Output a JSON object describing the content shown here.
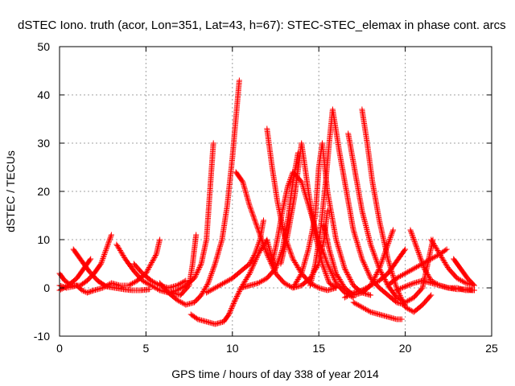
{
  "chart_data": {
    "type": "scatter",
    "title": "dSTEC Iono. truth (acor, Lon=351, Lat=43, h=67): STEC-STEC_elemax in phase cont. arcs",
    "xlabel": "GPS time / hours of day 338 of year 2014",
    "ylabel": "dSTEC  / TECUs",
    "xlim": [
      0,
      25
    ],
    "ylim": [
      -10,
      50
    ],
    "xticks": [
      0,
      5,
      10,
      15,
      20,
      25
    ],
    "yticks": [
      -10,
      0,
      10,
      20,
      30,
      40,
      50
    ],
    "grid": true,
    "marker": "+",
    "color": "#ff0000",
    "series": [
      {
        "points": [
          [
            0.0,
            3
          ],
          [
            0.3,
            1.5
          ],
          [
            0.7,
            0.5
          ],
          [
            1.2,
            0.5
          ],
          [
            1.6,
            1.5
          ],
          [
            2.0,
            3
          ],
          [
            2.4,
            5
          ],
          [
            2.7,
            8
          ],
          [
            3.0,
            11
          ]
        ]
      },
      {
        "points": [
          [
            0.0,
            -0.5
          ],
          [
            0.5,
            0.5
          ],
          [
            1.0,
            2
          ],
          [
            1.4,
            4
          ],
          [
            1.8,
            6
          ]
        ]
      },
      {
        "points": [
          [
            0.0,
            0.5
          ],
          [
            0.4,
            0
          ],
          [
            0.8,
            0.3
          ],
          [
            1.0,
            0.5
          ],
          [
            1.3,
            -0.5
          ],
          [
            1.6,
            -1
          ],
          [
            2.0,
            -0.5
          ],
          [
            2.5,
            0
          ],
          [
            3.0,
            1
          ],
          [
            3.5,
            0.5
          ],
          [
            4.0,
            0.5
          ],
          [
            4.5,
            1.5
          ],
          [
            5.0,
            3
          ],
          [
            5.3,
            5
          ],
          [
            5.6,
            7
          ],
          [
            5.8,
            10
          ]
        ]
      },
      {
        "points": [
          [
            0.8,
            8
          ],
          [
            1.2,
            6
          ],
          [
            1.7,
            3.5
          ],
          [
            2.2,
            1.5
          ],
          [
            2.7,
            0.3
          ],
          [
            3.2,
            0
          ],
          [
            3.7,
            -0.3
          ],
          [
            4.2,
            -0.5
          ],
          [
            4.7,
            -0.5
          ],
          [
            5.2,
            -0.3
          ]
        ]
      },
      {
        "points": [
          [
            3.3,
            9
          ],
          [
            3.8,
            6
          ],
          [
            4.3,
            3.5
          ],
          [
            4.8,
            1.5
          ],
          [
            5.3,
            0.5
          ],
          [
            5.8,
            -0.5
          ],
          [
            6.3,
            -1
          ],
          [
            6.8,
            -0.5
          ],
          [
            7.3,
            0.5
          ],
          [
            7.8,
            2
          ],
          [
            8.2,
            5
          ],
          [
            8.5,
            10
          ],
          [
            8.7,
            20
          ],
          [
            8.9,
            30
          ]
        ]
      },
      {
        "points": [
          [
            4.3,
            5
          ],
          [
            4.8,
            3
          ],
          [
            5.3,
            1.5
          ],
          [
            5.8,
            0.5
          ],
          [
            6.3,
            0
          ],
          [
            6.8,
            0.5
          ],
          [
            7.3,
            1.5
          ]
        ]
      },
      {
        "points": [
          [
            5.8,
            1
          ],
          [
            6.3,
            -1
          ],
          [
            6.8,
            -2.5
          ],
          [
            7.3,
            -3.5
          ],
          [
            7.8,
            -3
          ],
          [
            8.2,
            -1.5
          ],
          [
            8.6,
            1
          ],
          [
            9.0,
            5
          ],
          [
            9.4,
            10
          ],
          [
            9.7,
            17
          ],
          [
            10.0,
            27
          ],
          [
            10.2,
            35
          ],
          [
            10.4,
            43
          ]
        ]
      },
      {
        "points": [
          [
            6.5,
            -1
          ],
          [
            7.0,
            -1.5
          ],
          [
            7.5,
            0.5
          ],
          [
            7.7,
            5
          ],
          [
            7.9,
            11
          ]
        ]
      },
      {
        "points": [
          [
            7.6,
            -5.5
          ],
          [
            8.0,
            -6.5
          ],
          [
            8.5,
            -7
          ],
          [
            9.0,
            -7.5
          ],
          [
            9.5,
            -7
          ],
          [
            9.8,
            -5.5
          ],
          [
            10.1,
            -3
          ],
          [
            10.5,
            0
          ],
          [
            11.0,
            3
          ],
          [
            11.5,
            7
          ],
          [
            12.0,
            10
          ],
          [
            12.3,
            6
          ],
          [
            12.5,
            3
          ]
        ]
      },
      {
        "points": [
          [
            8.5,
            -1
          ],
          [
            9.0,
            0
          ],
          [
            9.5,
            1
          ],
          [
            10.0,
            2
          ],
          [
            10.5,
            3.5
          ],
          [
            11.0,
            5
          ],
          [
            11.3,
            7
          ],
          [
            11.6,
            10
          ],
          [
            11.8,
            14
          ]
        ]
      },
      {
        "points": [
          [
            10.2,
            24
          ],
          [
            10.6,
            22
          ],
          [
            11.0,
            17
          ],
          [
            11.5,
            12
          ],
          [
            12.0,
            7
          ],
          [
            12.5,
            3
          ],
          [
            13.0,
            1
          ],
          [
            13.5,
            0
          ],
          [
            14.0,
            0.5
          ],
          [
            14.5,
            2
          ],
          [
            15.0,
            5
          ],
          [
            15.3,
            10
          ],
          [
            15.5,
            16
          ]
        ]
      },
      {
        "points": [
          [
            12.0,
            33
          ],
          [
            12.3,
            25
          ],
          [
            12.6,
            18
          ],
          [
            13.0,
            11
          ],
          [
            13.5,
            6
          ],
          [
            14.0,
            3
          ],
          [
            14.5,
            1
          ],
          [
            15.0,
            0
          ],
          [
            15.5,
            -0.5
          ],
          [
            16.0,
            0
          ]
        ]
      },
      {
        "points": [
          [
            10.5,
            0
          ],
          [
            11.0,
            0.5
          ],
          [
            11.5,
            1
          ],
          [
            12.0,
            2
          ],
          [
            12.5,
            4
          ],
          [
            12.9,
            8
          ],
          [
            13.2,
            14
          ],
          [
            13.5,
            22
          ],
          [
            13.8,
            28
          ]
        ]
      },
      {
        "points": [
          [
            12.3,
            5
          ],
          [
            12.6,
            10
          ],
          [
            12.9,
            16
          ],
          [
            13.2,
            21
          ],
          [
            13.5,
            24
          ],
          [
            14.0,
            22
          ],
          [
            14.5,
            16
          ],
          [
            15.0,
            10
          ],
          [
            15.5,
            5
          ],
          [
            16.0,
            1
          ],
          [
            16.5,
            -1
          ],
          [
            17.0,
            -2
          ]
        ]
      },
      {
        "points": [
          [
            12.8,
            5
          ],
          [
            13.2,
            11
          ],
          [
            13.6,
            19
          ],
          [
            14.0,
            30
          ],
          [
            14.4,
            20
          ],
          [
            14.8,
            11
          ],
          [
            15.2,
            5
          ],
          [
            15.6,
            1
          ],
          [
            16.0,
            0
          ]
        ]
      },
      {
        "points": [
          [
            13.5,
            0
          ],
          [
            14.0,
            3
          ],
          [
            14.4,
            8
          ],
          [
            14.8,
            15
          ],
          [
            15.0,
            25
          ],
          [
            15.2,
            30
          ],
          [
            15.5,
            20
          ],
          [
            16.0,
            10
          ],
          [
            16.5,
            4
          ],
          [
            17.0,
            0.5
          ],
          [
            17.5,
            -1
          ],
          [
            18.0,
            -1.5
          ]
        ]
      },
      {
        "points": [
          [
            14.5,
            0.5
          ],
          [
            14.8,
            5
          ],
          [
            15.1,
            12
          ],
          [
            15.4,
            22
          ],
          [
            15.6,
            30
          ],
          [
            15.8,
            37
          ],
          [
            16.2,
            28
          ],
          [
            16.6,
            20
          ],
          [
            17.0,
            12
          ],
          [
            17.5,
            6
          ],
          [
            18.0,
            2
          ],
          [
            18.5,
            0
          ],
          [
            19.0,
            -1.5
          ],
          [
            19.5,
            -3
          ],
          [
            20.0,
            -3.5
          ]
        ]
      },
      {
        "points": [
          [
            15.3,
            13
          ],
          [
            15.6,
            8
          ],
          [
            16.0,
            3
          ],
          [
            16.5,
            0
          ],
          [
            17.0,
            -1.5
          ],
          [
            17.5,
            -1
          ],
          [
            18.0,
            0.5
          ],
          [
            18.5,
            4
          ],
          [
            19.0,
            9
          ],
          [
            19.3,
            12
          ]
        ]
      },
      {
        "points": [
          [
            16.7,
            32
          ],
          [
            17.1,
            24
          ],
          [
            17.5,
            16
          ],
          [
            18.0,
            9
          ],
          [
            18.5,
            4
          ],
          [
            19.0,
            0.5
          ],
          [
            19.5,
            -2
          ],
          [
            20.0,
            -3
          ],
          [
            20.5,
            -2
          ],
          [
            21.0,
            0
          ],
          [
            21.3,
            5
          ],
          [
            21.6,
            10
          ]
        ]
      },
      {
        "points": [
          [
            17.5,
            37
          ],
          [
            17.8,
            30
          ],
          [
            18.1,
            22
          ],
          [
            18.5,
            14
          ],
          [
            19.0,
            6
          ],
          [
            19.5,
            0
          ],
          [
            20.0,
            -4
          ],
          [
            20.5,
            -5
          ],
          [
            21.0,
            -3.5
          ],
          [
            21.5,
            -1.5
          ]
        ]
      },
      {
        "points": [
          [
            16.5,
            -2
          ],
          [
            17.0,
            -1
          ],
          [
            17.5,
            -0.5
          ],
          [
            18.0,
            0.5
          ],
          [
            18.5,
            1.5
          ],
          [
            19.0,
            3
          ],
          [
            19.5,
            5.5
          ],
          [
            20.0,
            8
          ]
        ]
      },
      {
        "points": [
          [
            17.0,
            -3
          ],
          [
            17.5,
            -4
          ],
          [
            18.0,
            -5
          ],
          [
            18.5,
            -5.5
          ],
          [
            19.0,
            -6
          ],
          [
            19.5,
            -6.5
          ],
          [
            19.8,
            -6.5
          ]
        ]
      },
      {
        "points": [
          [
            20.3,
            12
          ],
          [
            20.7,
            8
          ],
          [
            21.1,
            4
          ],
          [
            21.5,
            1.5
          ],
          [
            22.0,
            0.5
          ],
          [
            22.5,
            0
          ],
          [
            23.0,
            0
          ],
          [
            23.5,
            -0.5
          ],
          [
            24.0,
            -0.5
          ]
        ]
      },
      {
        "points": [
          [
            21.5,
            10
          ],
          [
            22.0,
            7
          ],
          [
            22.5,
            4
          ],
          [
            23.0,
            2
          ],
          [
            23.5,
            1
          ],
          [
            24.0,
            0.5
          ]
        ]
      },
      {
        "points": [
          [
            19.0,
            0.5
          ],
          [
            19.5,
            2
          ],
          [
            20.0,
            3
          ],
          [
            20.5,
            4
          ],
          [
            21.0,
            5
          ],
          [
            21.5,
            6
          ],
          [
            22.0,
            7
          ],
          [
            22.4,
            8
          ]
        ]
      },
      {
        "points": [
          [
            22.8,
            6
          ],
          [
            23.2,
            4
          ],
          [
            23.6,
            2
          ],
          [
            24.0,
            0.5
          ]
        ]
      },
      {
        "points": [
          [
            19.5,
            -0.5
          ],
          [
            20.0,
            0.3
          ],
          [
            20.5,
            1
          ],
          [
            21.0,
            1.5
          ],
          [
            21.5,
            1
          ],
          [
            22.0,
            0.5
          ],
          [
            22.5,
            0
          ],
          [
            23.0,
            -0.3
          ],
          [
            23.5,
            -0.3
          ],
          [
            24.0,
            -0.5
          ]
        ]
      }
    ]
  }
}
